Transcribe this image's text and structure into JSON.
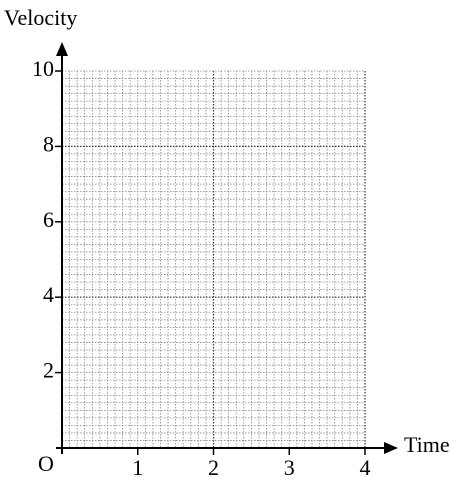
{
  "chart_data": {
    "type": "line",
    "x_label": "Time",
    "y_label": "Velocity",
    "origin_label": "O",
    "xlim": [
      0,
      4
    ],
    "ylim": [
      0,
      10
    ],
    "xticks": [
      1,
      2,
      3,
      4
    ],
    "yticks": [
      2,
      4,
      6,
      8,
      10
    ],
    "grid": {
      "x_step": 0.1,
      "y_step": 0.2
    },
    "series": []
  }
}
